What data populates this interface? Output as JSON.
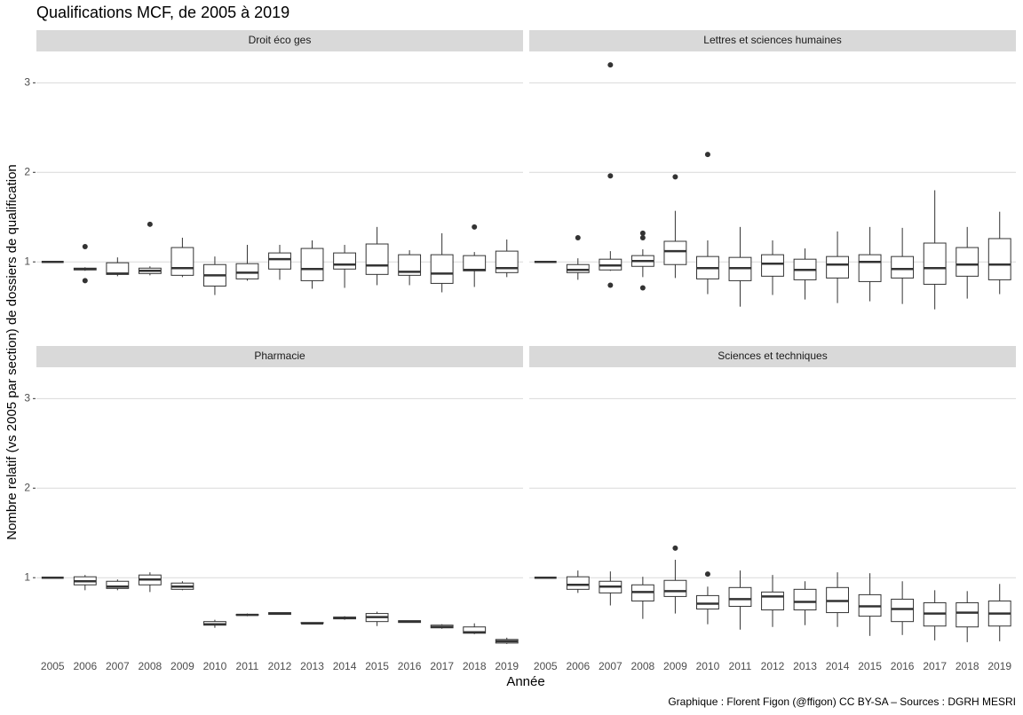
{
  "title": "Qualifications MCF, de 2005 à 2019",
  "x_label": "Année",
  "y_label": "Nombre relatif (vs 2005 par section) de dossiers de qualification",
  "caption": "Graphique : Florent Figon (@ffigon) CC BY-SA – Sources : DGRH MESRI",
  "chart_data": [
    {
      "type": "box",
      "title": "Droit éco ges",
      "ylim": [
        0.16,
        3.35
      ],
      "yticks": [
        1,
        2,
        3
      ],
      "grid": true,
      "color": "#333333",
      "boxes": [
        {
          "min": 1,
          "q1": 1,
          "median": 1,
          "q3": 1,
          "max": 1
        },
        {
          "min": 0.9,
          "q1": 0.91,
          "median": 0.92,
          "q3": 0.93,
          "max": 0.94,
          "outliers": [
            1.17,
            0.79
          ]
        },
        {
          "min": 0.84,
          "q1": 0.86,
          "median": 0.87,
          "q3": 0.99,
          "max": 1.05
        },
        {
          "min": 0.85,
          "q1": 0.87,
          "median": 0.9,
          "q3": 0.93,
          "max": 0.95,
          "outliers": [
            1.42
          ]
        },
        {
          "min": 0.83,
          "q1": 0.85,
          "median": 0.93,
          "q3": 1.16,
          "max": 1.27
        },
        {
          "min": 0.63,
          "q1": 0.73,
          "median": 0.85,
          "q3": 0.97,
          "max": 1.06
        },
        {
          "min": 0.79,
          "q1": 0.81,
          "median": 0.88,
          "q3": 0.98,
          "max": 1.19
        },
        {
          "min": 0.8,
          "q1": 0.92,
          "median": 1.03,
          "q3": 1.1,
          "max": 1.19
        },
        {
          "min": 0.7,
          "q1": 0.79,
          "median": 0.92,
          "q3": 1.15,
          "max": 1.24
        },
        {
          "min": 0.71,
          "q1": 0.92,
          "median": 0.97,
          "q3": 1.1,
          "max": 1.19
        },
        {
          "min": 0.74,
          "q1": 0.86,
          "median": 0.96,
          "q3": 1.2,
          "max": 1.39
        },
        {
          "min": 0.74,
          "q1": 0.85,
          "median": 0.89,
          "q3": 1.08,
          "max": 1.13
        },
        {
          "min": 0.66,
          "q1": 0.76,
          "median": 0.87,
          "q3": 1.08,
          "max": 1.32
        },
        {
          "min": 0.72,
          "q1": 0.9,
          "median": 0.91,
          "q3": 1.07,
          "max": 1.11,
          "outliers": [
            1.39
          ]
        },
        {
          "min": 0.83,
          "q1": 0.88,
          "median": 0.93,
          "q3": 1.12,
          "max": 1.25
        }
      ]
    },
    {
      "type": "box",
      "title": "Lettres et sciences humaines",
      "ylim": [
        0.16,
        3.35
      ],
      "yticks": [
        1,
        2,
        3
      ],
      "grid": true,
      "color": "#333333",
      "boxes": [
        {
          "min": 1,
          "q1": 1,
          "median": 1,
          "q3": 1,
          "max": 1
        },
        {
          "min": 0.8,
          "q1": 0.88,
          "median": 0.91,
          "q3": 0.97,
          "max": 1.04,
          "outliers": [
            1.27
          ]
        },
        {
          "min": 0.9,
          "q1": 0.91,
          "median": 0.96,
          "q3": 1.03,
          "max": 1.12,
          "outliers": [
            3.2,
            1.96,
            0.74
          ]
        },
        {
          "min": 0.83,
          "q1": 0.95,
          "median": 1.01,
          "q3": 1.07,
          "max": 1.14,
          "outliers": [
            1.32,
            1.27,
            0.71
          ]
        },
        {
          "min": 0.82,
          "q1": 0.97,
          "median": 1.12,
          "q3": 1.23,
          "max": 1.57,
          "outliers": [
            1.95
          ]
        },
        {
          "min": 0.64,
          "q1": 0.81,
          "median": 0.93,
          "q3": 1.06,
          "max": 1.24,
          "outliers": [
            2.2
          ]
        },
        {
          "min": 0.5,
          "q1": 0.79,
          "median": 0.93,
          "q3": 1.05,
          "max": 1.39
        },
        {
          "min": 0.63,
          "q1": 0.84,
          "median": 0.98,
          "q3": 1.08,
          "max": 1.24
        },
        {
          "min": 0.58,
          "q1": 0.8,
          "median": 0.91,
          "q3": 1.03,
          "max": 1.15
        },
        {
          "min": 0.54,
          "q1": 0.82,
          "median": 0.97,
          "q3": 1.06,
          "max": 1.34
        },
        {
          "min": 0.56,
          "q1": 0.78,
          "median": 1.0,
          "q3": 1.08,
          "max": 1.39
        },
        {
          "min": 0.53,
          "q1": 0.82,
          "median": 0.92,
          "q3": 1.06,
          "max": 1.38
        },
        {
          "min": 0.47,
          "q1": 0.75,
          "median": 0.93,
          "q3": 1.21,
          "max": 1.8
        },
        {
          "min": 0.59,
          "q1": 0.84,
          "median": 0.97,
          "q3": 1.16,
          "max": 1.39
        },
        {
          "min": 0.64,
          "q1": 0.8,
          "median": 0.97,
          "q3": 1.26,
          "max": 1.56
        }
      ]
    },
    {
      "type": "box",
      "title": "Pharmacie",
      "ylim": [
        0.16,
        3.35
      ],
      "yticks": [
        1,
        2,
        3
      ],
      "grid": true,
      "color": "#333333",
      "categories": [
        "2005",
        "2006",
        "2007",
        "2008",
        "2009",
        "2010",
        "2011",
        "2012",
        "2013",
        "2014",
        "2015",
        "2016",
        "2017",
        "2018",
        "2019"
      ],
      "boxes": [
        {
          "min": 1,
          "q1": 1,
          "median": 1,
          "q3": 1,
          "max": 1
        },
        {
          "min": 0.86,
          "q1": 0.92,
          "median": 0.96,
          "q3": 1.01,
          "max": 1.03
        },
        {
          "min": 0.86,
          "q1": 0.88,
          "median": 0.9,
          "q3": 0.96,
          "max": 0.98
        },
        {
          "min": 0.84,
          "q1": 0.92,
          "median": 0.98,
          "q3": 1.03,
          "max": 1.06
        },
        {
          "min": 0.86,
          "q1": 0.87,
          "median": 0.9,
          "q3": 0.94,
          "max": 0.96
        },
        {
          "min": 0.44,
          "q1": 0.47,
          "median": 0.48,
          "q3": 0.51,
          "max": 0.53
        },
        {
          "min": 0.57,
          "q1": 0.58,
          "median": 0.585,
          "q3": 0.59,
          "max": 0.6
        },
        {
          "min": 0.59,
          "q1": 0.59,
          "median": 0.6,
          "q3": 0.61,
          "max": 0.61
        },
        {
          "min": 0.49,
          "q1": 0.49,
          "median": 0.49,
          "q3": 0.5,
          "max": 0.5
        },
        {
          "min": 0.53,
          "q1": 0.54,
          "median": 0.55,
          "q3": 0.56,
          "max": 0.57
        },
        {
          "min": 0.46,
          "q1": 0.51,
          "median": 0.56,
          "q3": 0.6,
          "max": 0.62
        },
        {
          "min": 0.5,
          "q1": 0.5,
          "median": 0.51,
          "q3": 0.52,
          "max": 0.52
        },
        {
          "min": 0.43,
          "q1": 0.44,
          "median": 0.45,
          "q3": 0.47,
          "max": 0.48
        },
        {
          "min": 0.37,
          "q1": 0.38,
          "median": 0.39,
          "q3": 0.45,
          "max": 0.49
        },
        {
          "min": 0.26,
          "q1": 0.27,
          "median": 0.29,
          "q3": 0.31,
          "max": 0.33
        }
      ]
    },
    {
      "type": "box",
      "title": "Sciences et techniques",
      "ylim": [
        0.16,
        3.35
      ],
      "yticks": [
        1,
        2,
        3
      ],
      "grid": true,
      "color": "#333333",
      "categories": [
        "2005",
        "2006",
        "2007",
        "2008",
        "2009",
        "2010",
        "2011",
        "2012",
        "2013",
        "2014",
        "2015",
        "2016",
        "2017",
        "2018",
        "2019"
      ],
      "boxes": [
        {
          "min": 1,
          "q1": 1,
          "median": 1,
          "q3": 1,
          "max": 1
        },
        {
          "min": 0.83,
          "q1": 0.87,
          "median": 0.92,
          "q3": 1.01,
          "max": 1.08
        },
        {
          "min": 0.69,
          "q1": 0.83,
          "median": 0.9,
          "q3": 0.96,
          "max": 1.07
        },
        {
          "min": 0.54,
          "q1": 0.74,
          "median": 0.84,
          "q3": 0.92,
          "max": 1.01
        },
        {
          "min": 0.6,
          "q1": 0.79,
          "median": 0.85,
          "q3": 0.97,
          "max": 1.2,
          "outliers": [
            1.33
          ]
        },
        {
          "min": 0.48,
          "q1": 0.65,
          "median": 0.71,
          "q3": 0.8,
          "max": 0.9,
          "outliers": [
            1.04
          ]
        },
        {
          "min": 0.42,
          "q1": 0.68,
          "median": 0.76,
          "q3": 0.89,
          "max": 1.08
        },
        {
          "min": 0.45,
          "q1": 0.64,
          "median": 0.79,
          "q3": 0.84,
          "max": 1.03
        },
        {
          "min": 0.47,
          "q1": 0.64,
          "median": 0.73,
          "q3": 0.87,
          "max": 0.96
        },
        {
          "min": 0.45,
          "q1": 0.61,
          "median": 0.74,
          "q3": 0.89,
          "max": 1.06
        },
        {
          "min": 0.35,
          "q1": 0.57,
          "median": 0.68,
          "q3": 0.81,
          "max": 1.05
        },
        {
          "min": 0.36,
          "q1": 0.51,
          "median": 0.65,
          "q3": 0.76,
          "max": 0.96
        },
        {
          "min": 0.3,
          "q1": 0.46,
          "median": 0.6,
          "q3": 0.72,
          "max": 0.86
        },
        {
          "min": 0.28,
          "q1": 0.45,
          "median": 0.61,
          "q3": 0.72,
          "max": 0.85
        },
        {
          "min": 0.29,
          "q1": 0.46,
          "median": 0.6,
          "q3": 0.74,
          "max": 0.93
        }
      ]
    }
  ]
}
